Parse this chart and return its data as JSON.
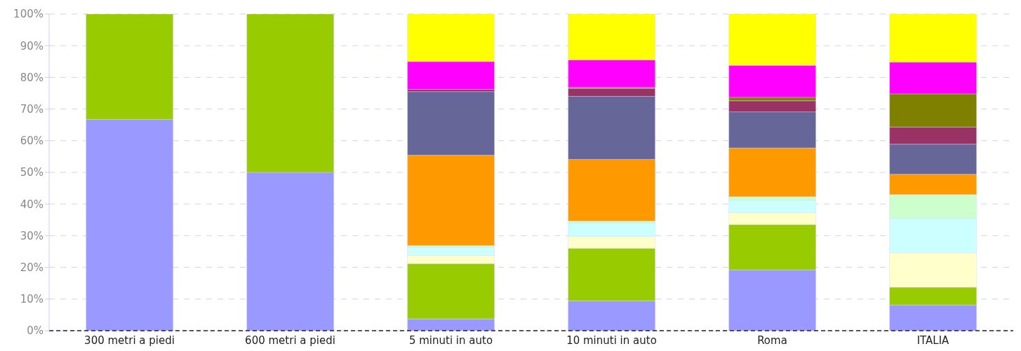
{
  "chart_data": {
    "type": "bar",
    "stacked": true,
    "categories": [
      "300 metri a piedi",
      "600 metri a piedi",
      "5 minuti in auto",
      "10 minuti in auto",
      "Roma",
      "ITALIA"
    ],
    "series": [
      {
        "color": "#9999ff",
        "values": [
          66.7,
          50,
          3.7,
          9.4,
          19.2,
          8.1
        ]
      },
      {
        "color": "#99cc00",
        "values": [
          33.3,
          50,
          17.5,
          16.6,
          14.3,
          5.6
        ]
      },
      {
        "color": "#ffffcc",
        "values": [
          0,
          0,
          2.6,
          3.8,
          3.8,
          10.9
        ]
      },
      {
        "color": "#ccffff",
        "values": [
          0,
          0,
          2.6,
          4.2,
          3.9,
          10.9
        ]
      },
      {
        "color": "#ccffcc",
        "values": [
          0,
          0,
          0.5,
          0.6,
          1.1,
          7.5
        ]
      },
      {
        "color": "#ff9900",
        "values": [
          0,
          0,
          28.5,
          19.5,
          15.4,
          6.4
        ]
      },
      {
        "color": "#666699",
        "values": [
          0,
          0,
          20.1,
          19.9,
          11.4,
          9.5
        ]
      },
      {
        "color": "#993366",
        "values": [
          0,
          0,
          0.7,
          2.5,
          3.5,
          5.4
        ]
      },
      {
        "color": "#808000",
        "values": [
          0,
          0,
          0,
          0.3,
          1.1,
          10.5
        ]
      },
      {
        "color": "#ff00ff",
        "values": [
          0,
          0,
          8.8,
          8.7,
          10.1,
          10
        ]
      },
      {
        "color": "#ffff00",
        "values": [
          0,
          0,
          15,
          14.5,
          16.2,
          15.2
        ]
      }
    ],
    "ylim": [
      0,
      100
    ],
    "yticks": [
      {
        "value": 0,
        "label": "0%"
      },
      {
        "value": 10,
        "label": "10%"
      },
      {
        "value": 20,
        "label": "20%"
      },
      {
        "value": 30,
        "label": "30%"
      },
      {
        "value": 40,
        "label": "40%"
      },
      {
        "value": 50,
        "label": "50%"
      },
      {
        "value": 60,
        "label": "60%"
      },
      {
        "value": 70,
        "label": "70%"
      },
      {
        "value": 80,
        "label": "80%"
      },
      {
        "value": 90,
        "label": "90%"
      },
      {
        "value": 100,
        "label": "100%"
      }
    ],
    "grid": "y",
    "legend": false
  }
}
